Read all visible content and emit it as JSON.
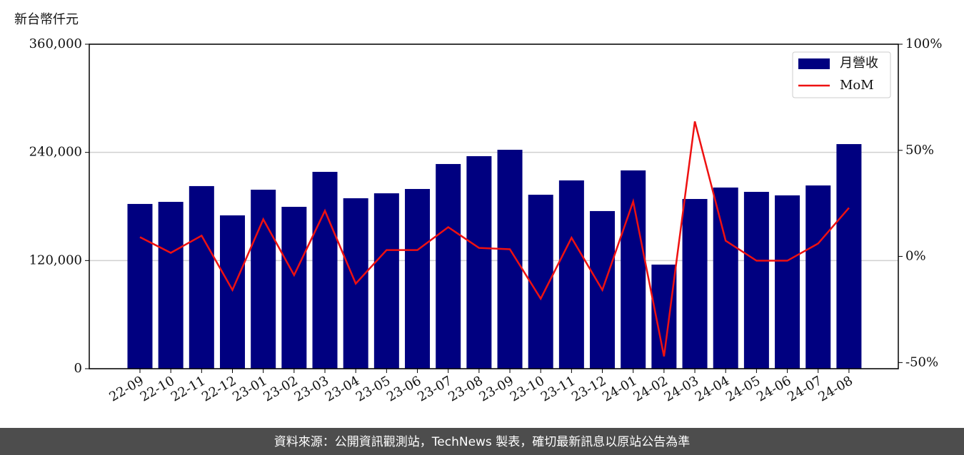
{
  "chart_data": {
    "type": "bar_line",
    "y_label": "新台幣仟元",
    "source": "資料來源：公開資訊觀測站，TechNews 製表，確切最新訊息以原站公告為準",
    "categories": [
      "22-09",
      "22-10",
      "22-11",
      "22-12",
      "23-01",
      "23-02",
      "23-03",
      "23-04",
      "23-05",
      "23-06",
      "23-07",
      "23-08",
      "23-09",
      "23-10",
      "23-11",
      "23-12",
      "24-01",
      "24-02",
      "24-03",
      "24-04",
      "24-05",
      "24-06",
      "24-07",
      "24-08"
    ],
    "series": [
      {
        "name": "月營收",
        "type": "bar",
        "color": "#000080",
        "values": [
          182800,
          185100,
          202600,
          170100,
          198600,
          179600,
          218400,
          189100,
          194600,
          199400,
          227100,
          235800,
          242900,
          193000,
          208900,
          174900,
          220000,
          115500,
          188300,
          201000,
          196200,
          192300,
          203300,
          249200
        ]
      },
      {
        "name": "MoM",
        "type": "line",
        "axis": "y2",
        "color": "#ee1111",
        "values": [
          9.1,
          1.7,
          9.8,
          -15.8,
          17.5,
          -8.8,
          21.5,
          -12.8,
          3.0,
          3.0,
          13.8,
          4.0,
          3.4,
          -19.9,
          8.8,
          -15.8,
          25.9,
          -47.1,
          63.6,
          7.4,
          -2.0,
          -2.0,
          6.1,
          22.9
        ]
      }
    ],
    "ylim": [
      0,
      360000
    ],
    "yticks": [
      0,
      {
        "value": 120000,
        "label": "120,000"
      },
      {
        "value": 240000,
        "label": "240,000"
      },
      {
        "value": 360000,
        "label": "360,000"
      }
    ],
    "y2lim": [
      -52.9,
      100
    ],
    "y2ticks": [
      {
        "value": -50,
        "label": "-50%"
      },
      {
        "value": 0,
        "label": "0%"
      },
      {
        "value": 50,
        "label": "50%"
      },
      {
        "value": 100,
        "label": "100%"
      }
    ],
    "grid": true,
    "legend": "upper right"
  }
}
